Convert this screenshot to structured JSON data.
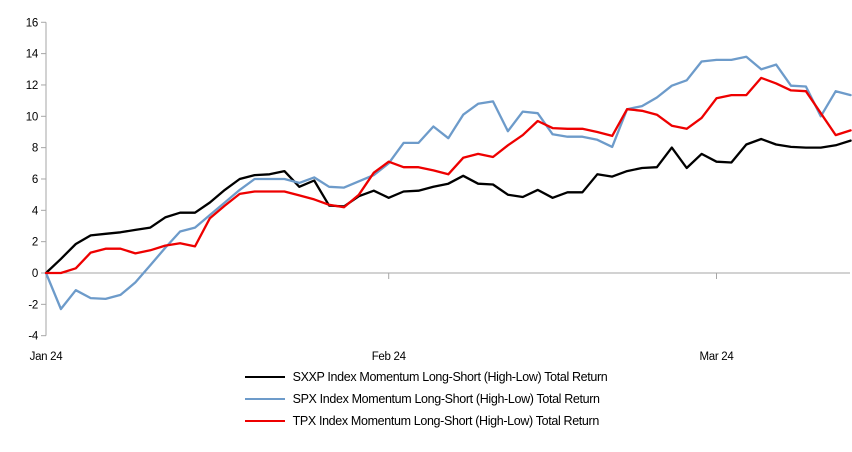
{
  "chart_data": {
    "type": "line",
    "title": "",
    "xlabel": "",
    "ylabel": "",
    "ylim": [
      -4,
      16
    ],
    "y_ticks": [
      16,
      14,
      12,
      10,
      8,
      6,
      4,
      2,
      0,
      -2,
      -4
    ],
    "x_tick_labels": [
      {
        "label": "Jan 24",
        "index": 0
      },
      {
        "label": "Feb 24",
        "index": 23
      },
      {
        "label": "Mar 24",
        "index": 45
      }
    ],
    "grid": "zero-line-only",
    "legend_position": "bottom",
    "axis_color": "#a6a6a6",
    "series": [
      {
        "key": "sxxp",
        "name": "SXXP Index Momentum Long-Short (High-Low) Total Return",
        "color": "#000000",
        "values": [
          0,
          0.9,
          1.85,
          2.4,
          2.5,
          2.6,
          2.75,
          2.9,
          3.55,
          3.85,
          3.85,
          4.5,
          5.3,
          6.0,
          6.25,
          6.3,
          6.5,
          5.5,
          5.9,
          4.3,
          4.25,
          4.9,
          5.25,
          4.8,
          5.2,
          5.25,
          5.5,
          5.7,
          6.2,
          5.7,
          5.65,
          5.0,
          4.85,
          5.3,
          4.8,
          5.15,
          5.15,
          6.3,
          6.15,
          6.5,
          6.7,
          6.75,
          8.0,
          6.7,
          7.6,
          7.1,
          7.05,
          8.2,
          8.55,
          8.2,
          8.05,
          8.0,
          8.0,
          8.15,
          8.45
        ]
      },
      {
        "key": "spx",
        "name": "SPX Index Momentum Long-Short (High-Low) Total Return",
        "color": "#6d9bca",
        "values": [
          0,
          -2.3,
          -1.1,
          -1.6,
          -1.65,
          -1.4,
          -0.6,
          0.5,
          1.6,
          2.65,
          2.9,
          3.7,
          4.5,
          5.3,
          6.0,
          6.0,
          6.0,
          5.75,
          6.1,
          5.5,
          5.45,
          5.85,
          6.25,
          7.0,
          8.3,
          8.3,
          9.35,
          8.6,
          10.1,
          10.8,
          10.95,
          9.05,
          10.3,
          10.2,
          8.85,
          8.7,
          8.7,
          8.5,
          8.05,
          10.45,
          10.65,
          11.2,
          11.95,
          12.3,
          13.5,
          13.6,
          13.6,
          13.8,
          13.0,
          13.3,
          11.95,
          11.9,
          10.0,
          11.6,
          11.35
        ]
      },
      {
        "key": "tpx",
        "name": "TPX Index Momentum Long-Short (High-Low) Total Return",
        "color": "#ee0000",
        "values": [
          0,
          0,
          0.3,
          1.3,
          1.55,
          1.55,
          1.25,
          1.45,
          1.75,
          1.9,
          1.7,
          3.5,
          4.3,
          5.05,
          5.2,
          5.2,
          5.2,
          4.95,
          4.7,
          4.35,
          4.2,
          5.0,
          6.4,
          7.1,
          6.75,
          6.75,
          6.55,
          6.3,
          7.35,
          7.6,
          7.4,
          8.15,
          8.8,
          9.7,
          9.25,
          9.2,
          9.2,
          9.0,
          8.75,
          10.45,
          10.35,
          10.1,
          9.4,
          9.2,
          9.9,
          11.15,
          11.35,
          11.35,
          12.45,
          12.1,
          11.65,
          11.6,
          10.2,
          8.8,
          9.1
        ]
      }
    ]
  }
}
